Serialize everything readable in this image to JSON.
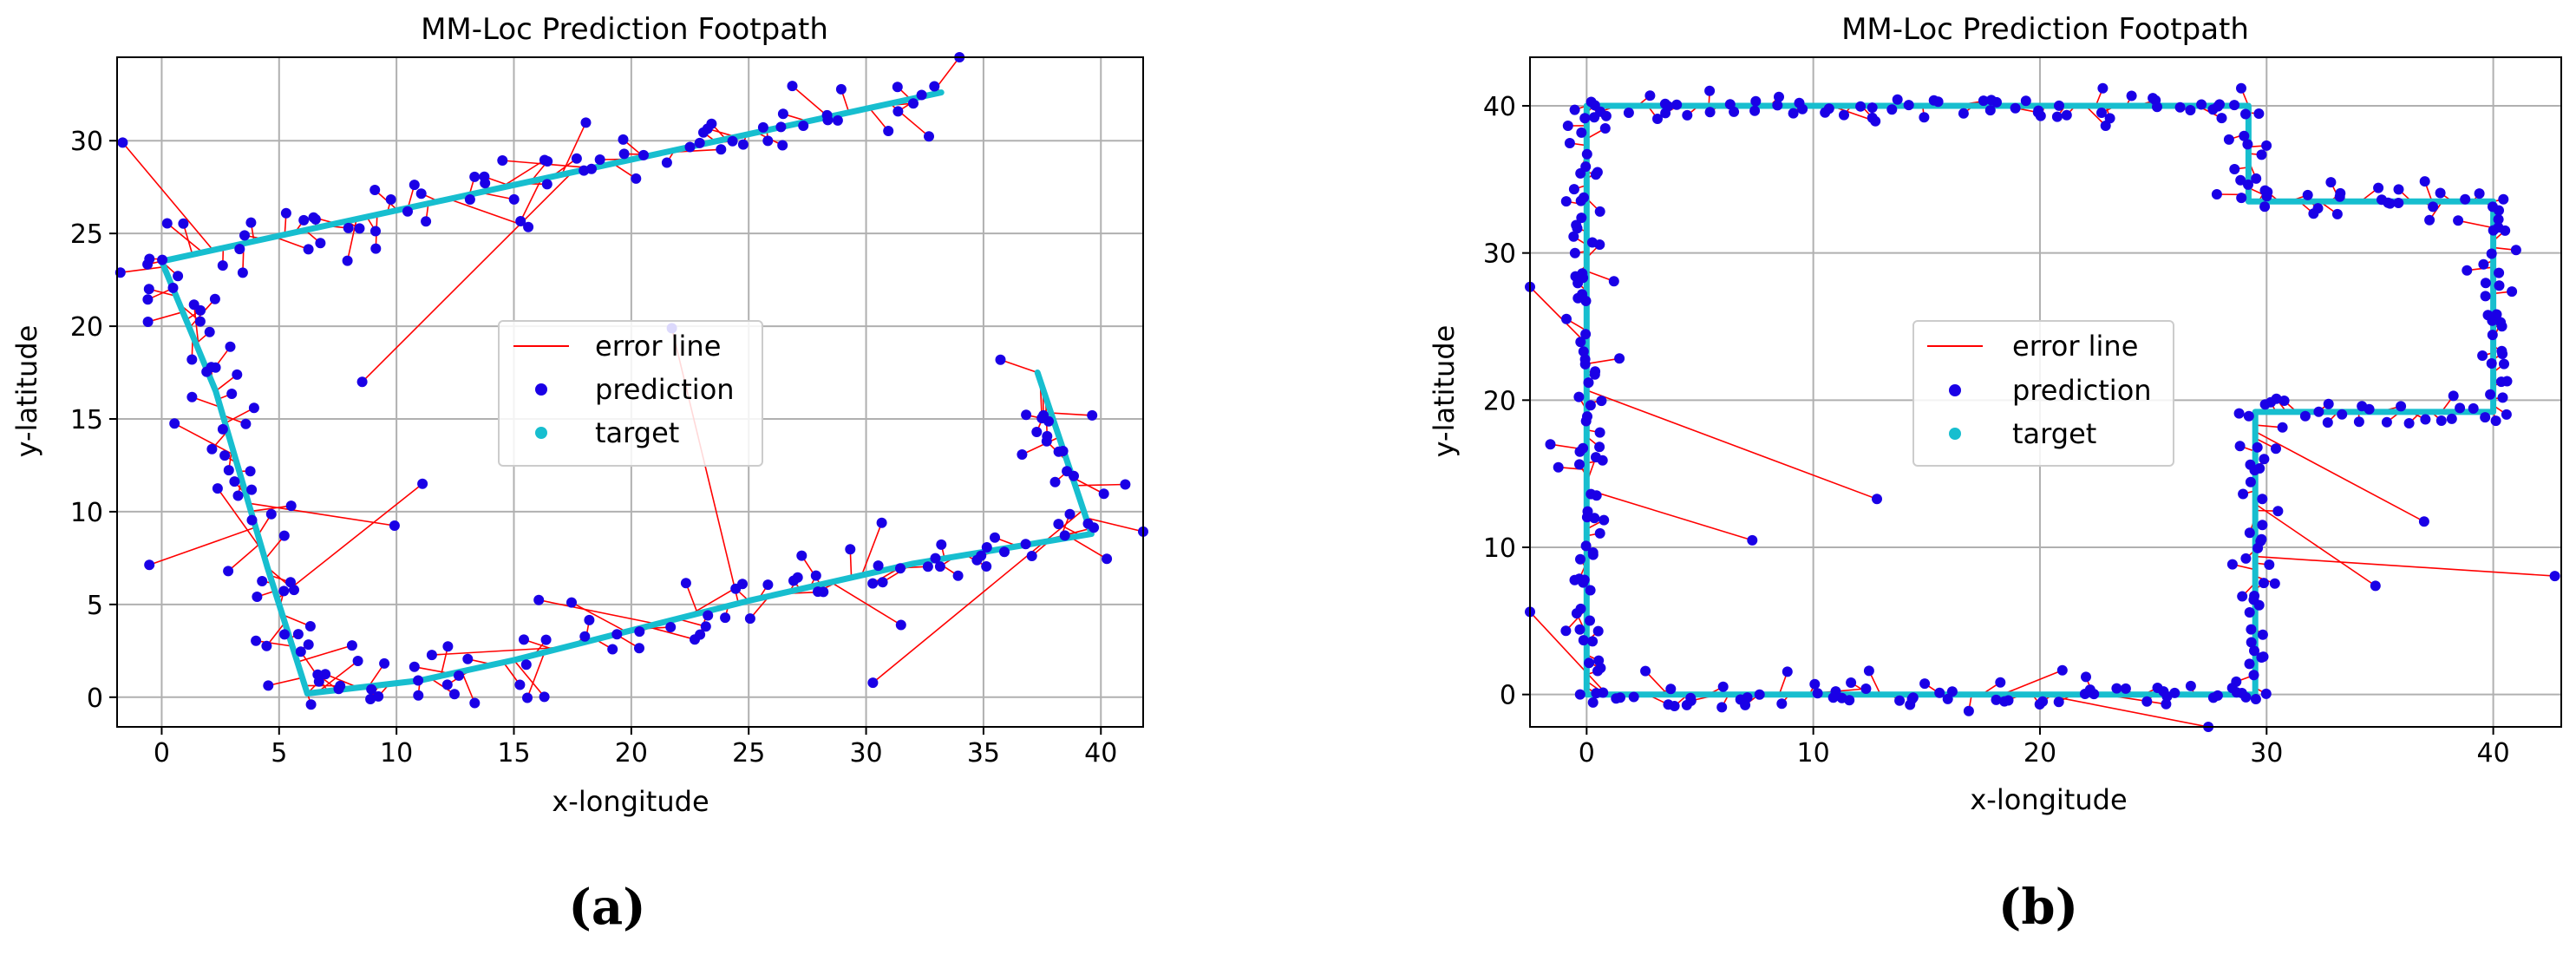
{
  "chart_data": [
    {
      "type": "scatter",
      "panel_label": "(a)",
      "title": "MM-Loc Prediction Footpath",
      "xlabel": "x-longitude",
      "ylabel": "y-latitude",
      "xlim": [
        -1.9,
        41.8
      ],
      "ylim": [
        -1.6,
        34.5
      ],
      "xticks": [
        0,
        5,
        10,
        15,
        20,
        25,
        30,
        35,
        40
      ],
      "yticks": [
        0,
        5,
        10,
        15,
        20,
        25,
        30
      ],
      "grid": true,
      "legend_position": "center",
      "colors": {
        "error": "#ff0000",
        "prediction": "#1a00e6",
        "target": "#17becf"
      },
      "series": [
        {
          "name": "target",
          "role": "target",
          "path": [
            [
              33.2,
              32.6
            ],
            [
              0.0,
              23.5
            ],
            [
              0.2,
              22.9
            ],
            [
              2.3,
              16.5
            ],
            [
              4.5,
              7.0
            ],
            [
              6.2,
              0.2
            ],
            [
              11.0,
              0.9
            ],
            [
              15.0,
              2.0
            ],
            [
              25.0,
              5.2
            ],
            [
              32.0,
              7.2
            ],
            [
              39.6,
              8.8
            ],
            [
              37.3,
              17.5
            ]
          ]
        },
        {
          "name": "prediction",
          "role": "prediction",
          "sample_spacing": 0.45,
          "jitter": 0.9,
          "outlier_rate": 0.07,
          "outlier_spread": 6.0,
          "seed": 7
        },
        {
          "name": "error line",
          "role": "error"
        }
      ]
    },
    {
      "type": "scatter",
      "panel_label": "(b)",
      "title": "MM-Loc Prediction Footpath",
      "xlabel": "x-longitude",
      "ylabel": "y-latitude",
      "xlim": [
        -2.5,
        43.0
      ],
      "ylim": [
        -2.2,
        43.3
      ],
      "xticks": [
        0,
        10,
        20,
        30,
        40
      ],
      "yticks": [
        0,
        10,
        20,
        30,
        40
      ],
      "grid": true,
      "legend_position": "center",
      "colors": {
        "error": "#ff0000",
        "prediction": "#1a00e6",
        "target": "#17becf"
      },
      "series": [
        {
          "name": "target",
          "role": "target",
          "path": [
            [
              0.0,
              40.0
            ],
            [
              29.2,
              40.0
            ],
            [
              29.2,
              33.5
            ],
            [
              40.0,
              33.5
            ],
            [
              40.0,
              19.2
            ],
            [
              29.5,
              19.2
            ],
            [
              29.5,
              0.0
            ],
            [
              0.0,
              0.0
            ],
            [
              0.0,
              40.0
            ]
          ]
        },
        {
          "name": "prediction",
          "role": "prediction",
          "sample_spacing": 0.45,
          "jitter": 0.55,
          "outlier_rate": 0.05,
          "outlier_spread": 7.0,
          "seed": 11
        },
        {
          "name": "error line",
          "role": "error"
        }
      ]
    }
  ]
}
